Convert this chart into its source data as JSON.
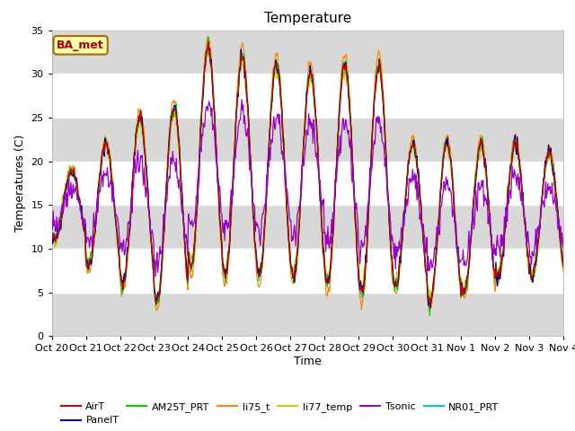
{
  "title": "Temperature",
  "ylabel": "Temperatures (C)",
  "xlabel": "Time",
  "ylim": [
    0,
    35
  ],
  "annotation": "BA_met",
  "colors": {
    "AirT": "#cc0000",
    "PanelT": "#000099",
    "AM25T_PRT": "#00cc00",
    "li75_t": "#ff8800",
    "li77_temp": "#cccc00",
    "Tsonic": "#9900cc",
    "NR01_PRT": "#00cccc"
  },
  "xtick_labels": [
    "Oct 20",
    "Oct 21",
    "Oct 22",
    "Oct 23",
    "Oct 24",
    "Oct 25",
    "Oct 26",
    "Oct 27",
    "Oct 28",
    "Oct 29",
    "Oct 30",
    "Oct 31",
    "Nov 1",
    "Nov 2",
    "Nov 3",
    "Nov 4"
  ],
  "white_band_ranges": [
    [
      5,
      10
    ],
    [
      15,
      20
    ],
    [
      25,
      30
    ]
  ],
  "background_color": "#ffffff",
  "plot_bg_color": "#d8d8d8"
}
